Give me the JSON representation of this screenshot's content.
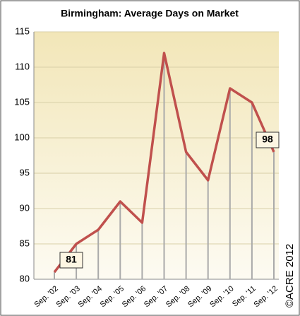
{
  "chart_data": {
    "type": "line",
    "title": "Birmingham: Average Days on Market",
    "categories": [
      "Sep. '02",
      "Sep. '03",
      "Sep. '04",
      "Sep. '05",
      "Sep. '06",
      "Sep. '07",
      "Sep. '08",
      "Sep. '09",
      "Sep. '10",
      "Sep. '11",
      "Sep. '12"
    ],
    "values": [
      81,
      85,
      87,
      91,
      88,
      112,
      98,
      94,
      107,
      105,
      98
    ],
    "color": "#c0504d",
    "ylim": [
      80,
      115
    ],
    "yticks": [
      80,
      85,
      90,
      95,
      100,
      105,
      110,
      115
    ],
    "grid": true,
    "labeled_points": [
      0,
      10
    ],
    "annotation": "©ACRE 2012"
  }
}
